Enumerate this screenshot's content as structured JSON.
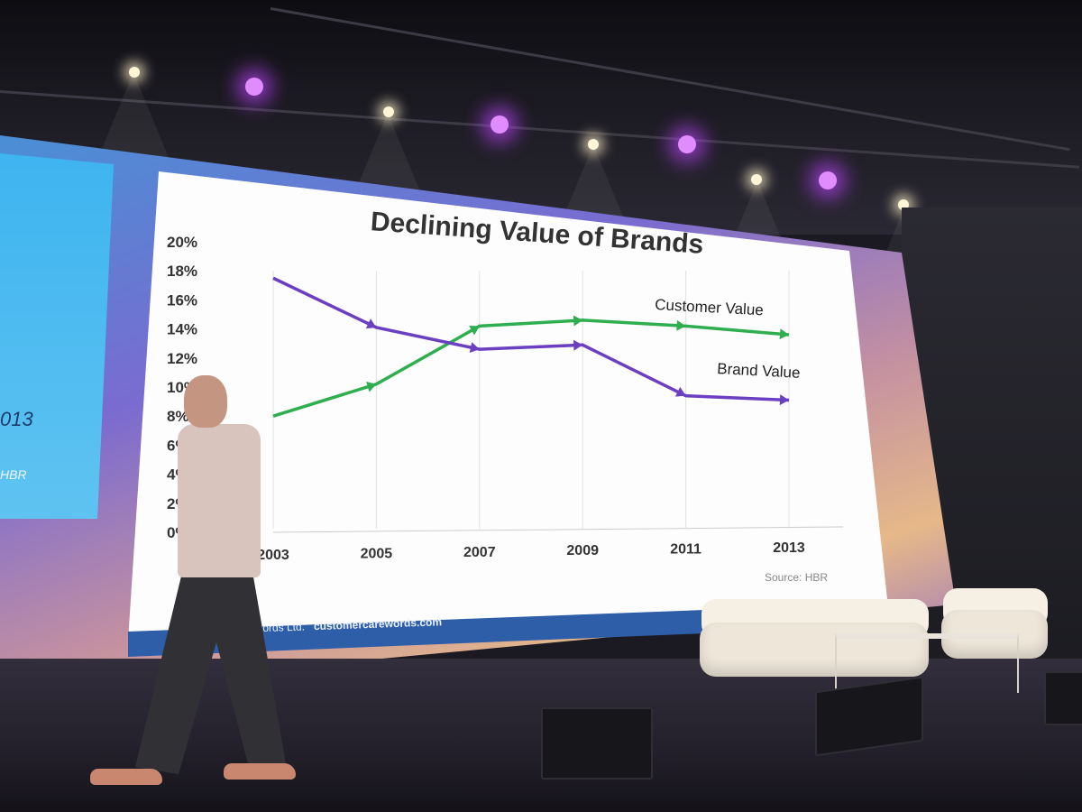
{
  "left_panel": {
    "year_fragment": "013",
    "source_fragment": "HBR"
  },
  "slide": {
    "title": "Declining Value of Brands",
    "source": "Source: HBR",
    "footer": {
      "company": "customercarewords Ltd.",
      "url": "customercarewords.com"
    },
    "colors": {
      "customer_value": "#2fae4f",
      "brand_value": "#6a3fc0",
      "background": "#fdfdfd",
      "footer": "#2e5ea8"
    }
  },
  "chart_data": {
    "type": "line",
    "title": "Declining Value of Brands",
    "x": [
      "2003",
      "2005",
      "2007",
      "2009",
      "2011",
      "2013"
    ],
    "y_ticks": [
      "0%",
      "2%",
      "4%",
      "6%",
      "8%",
      "10%",
      "12%",
      "14%",
      "16%",
      "18%",
      "20%"
    ],
    "ylim": [
      0,
      20
    ],
    "grid": "vertical",
    "series": [
      {
        "name": "Customer Value",
        "x": [
          2003,
          2005,
          2007,
          2009,
          2011,
          2013
        ],
        "values": [
          8,
          10.2,
          14.2,
          14.6,
          14.2,
          13.6
        ]
      },
      {
        "name": "Brand Value",
        "x": [
          2003,
          2005,
          2007,
          2009,
          2011,
          2013
        ],
        "values": [
          17.5,
          14.1,
          12.6,
          12.9,
          9.4,
          9.1
        ]
      }
    ]
  }
}
